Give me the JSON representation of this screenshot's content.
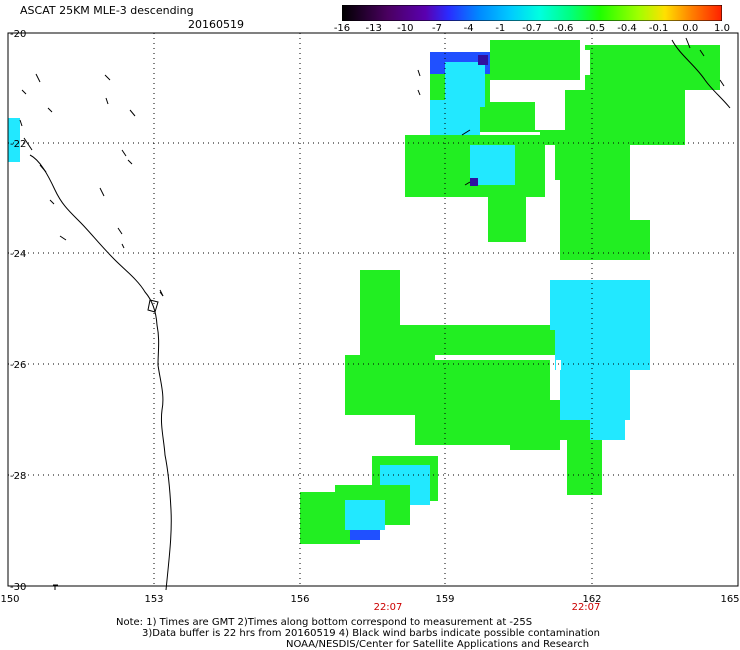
{
  "header": {
    "title": "ASCAT 25KM MLE-3 descending",
    "date": "20160519"
  },
  "colorbar": {
    "labels": [
      "-16",
      "-13",
      "-10",
      "-7",
      "-4",
      "-1",
      "-0.7",
      "-0.6",
      "-0.5",
      "-0.4",
      "-0.1",
      "0.0",
      "1.0"
    ],
    "colors": [
      "#000000",
      "#4a0060",
      "#5a00b0",
      "#2a2cff",
      "#0088ff",
      "#00c8ff",
      "#00ffe0",
      "#00ff80",
      "#20ff00",
      "#a0ff00",
      "#ffe000",
      "#ff8000",
      "#ff2000"
    ]
  },
  "axes": {
    "lon_labels": [
      "150",
      "153",
      "156",
      "159",
      "162",
      "165"
    ],
    "lat_labels": [
      "-20",
      "-22",
      "-24",
      "-26",
      "-28",
      "-30"
    ],
    "time_labels": [
      "22:07",
      "22:07"
    ]
  },
  "notes": {
    "line1": "Note: 1) Times are GMT 2)Times along bottom correspond to measurement at -25S",
    "line2": "3)Data buffer is 22 hrs from 20160519 4) Black wind barbs indicate possible contamination",
    "line3": "NOAA/NESDIS/Center for Satellite Applications and Research"
  },
  "colors": {
    "green": "#22ee22",
    "cyan": "#22e8ff",
    "blue": "#2050ff",
    "time_red": "#cc0000"
  }
}
